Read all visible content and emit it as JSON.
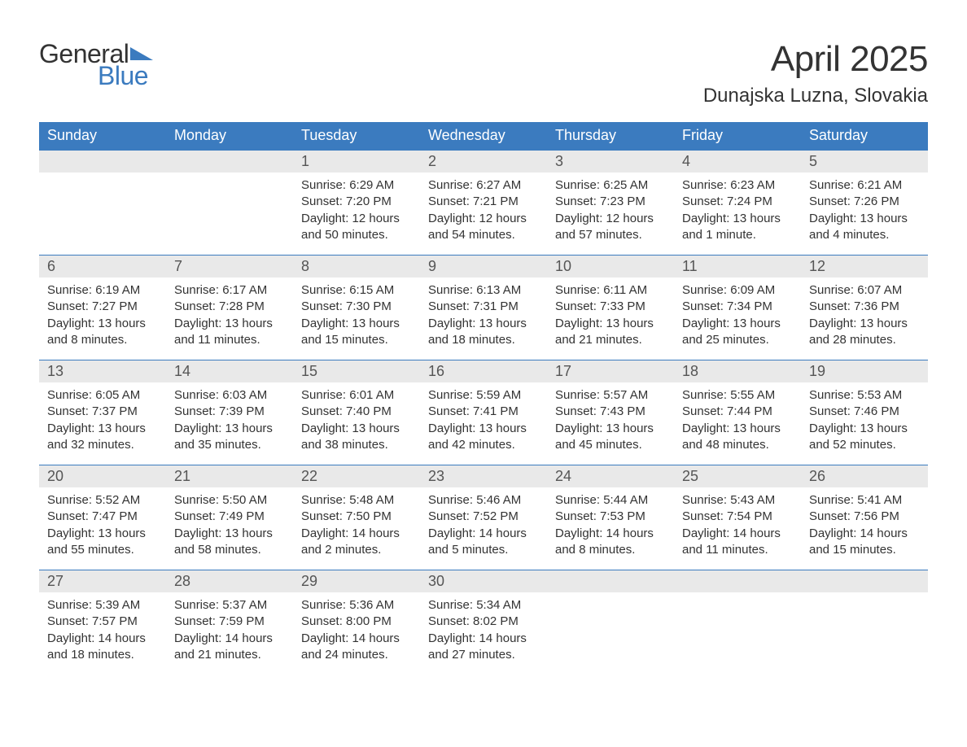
{
  "brand": {
    "word1": "General",
    "word2": "Blue",
    "color1": "#333333",
    "color2": "#3b7bbf"
  },
  "title": {
    "month": "April 2025",
    "location": "Dunajska Luzna, Slovakia"
  },
  "colors": {
    "header_bg": "#3b7bbf",
    "header_text": "#ffffff",
    "band_bg": "#e9e9e9",
    "text": "#333333",
    "rule": "#3b7bbf"
  },
  "day_names": [
    "Sunday",
    "Monday",
    "Tuesday",
    "Wednesday",
    "Thursday",
    "Friday",
    "Saturday"
  ],
  "weeks": [
    [
      null,
      null,
      {
        "n": "1",
        "sunrise": "Sunrise: 6:29 AM",
        "sunset": "Sunset: 7:20 PM",
        "day1": "Daylight: 12 hours",
        "day2": "and 50 minutes."
      },
      {
        "n": "2",
        "sunrise": "Sunrise: 6:27 AM",
        "sunset": "Sunset: 7:21 PM",
        "day1": "Daylight: 12 hours",
        "day2": "and 54 minutes."
      },
      {
        "n": "3",
        "sunrise": "Sunrise: 6:25 AM",
        "sunset": "Sunset: 7:23 PM",
        "day1": "Daylight: 12 hours",
        "day2": "and 57 minutes."
      },
      {
        "n": "4",
        "sunrise": "Sunrise: 6:23 AM",
        "sunset": "Sunset: 7:24 PM",
        "day1": "Daylight: 13 hours",
        "day2": "and 1 minute."
      },
      {
        "n": "5",
        "sunrise": "Sunrise: 6:21 AM",
        "sunset": "Sunset: 7:26 PM",
        "day1": "Daylight: 13 hours",
        "day2": "and 4 minutes."
      }
    ],
    [
      {
        "n": "6",
        "sunrise": "Sunrise: 6:19 AM",
        "sunset": "Sunset: 7:27 PM",
        "day1": "Daylight: 13 hours",
        "day2": "and 8 minutes."
      },
      {
        "n": "7",
        "sunrise": "Sunrise: 6:17 AM",
        "sunset": "Sunset: 7:28 PM",
        "day1": "Daylight: 13 hours",
        "day2": "and 11 minutes."
      },
      {
        "n": "8",
        "sunrise": "Sunrise: 6:15 AM",
        "sunset": "Sunset: 7:30 PM",
        "day1": "Daylight: 13 hours",
        "day2": "and 15 minutes."
      },
      {
        "n": "9",
        "sunrise": "Sunrise: 6:13 AM",
        "sunset": "Sunset: 7:31 PM",
        "day1": "Daylight: 13 hours",
        "day2": "and 18 minutes."
      },
      {
        "n": "10",
        "sunrise": "Sunrise: 6:11 AM",
        "sunset": "Sunset: 7:33 PM",
        "day1": "Daylight: 13 hours",
        "day2": "and 21 minutes."
      },
      {
        "n": "11",
        "sunrise": "Sunrise: 6:09 AM",
        "sunset": "Sunset: 7:34 PM",
        "day1": "Daylight: 13 hours",
        "day2": "and 25 minutes."
      },
      {
        "n": "12",
        "sunrise": "Sunrise: 6:07 AM",
        "sunset": "Sunset: 7:36 PM",
        "day1": "Daylight: 13 hours",
        "day2": "and 28 minutes."
      }
    ],
    [
      {
        "n": "13",
        "sunrise": "Sunrise: 6:05 AM",
        "sunset": "Sunset: 7:37 PM",
        "day1": "Daylight: 13 hours",
        "day2": "and 32 minutes."
      },
      {
        "n": "14",
        "sunrise": "Sunrise: 6:03 AM",
        "sunset": "Sunset: 7:39 PM",
        "day1": "Daylight: 13 hours",
        "day2": "and 35 minutes."
      },
      {
        "n": "15",
        "sunrise": "Sunrise: 6:01 AM",
        "sunset": "Sunset: 7:40 PM",
        "day1": "Daylight: 13 hours",
        "day2": "and 38 minutes."
      },
      {
        "n": "16",
        "sunrise": "Sunrise: 5:59 AM",
        "sunset": "Sunset: 7:41 PM",
        "day1": "Daylight: 13 hours",
        "day2": "and 42 minutes."
      },
      {
        "n": "17",
        "sunrise": "Sunrise: 5:57 AM",
        "sunset": "Sunset: 7:43 PM",
        "day1": "Daylight: 13 hours",
        "day2": "and 45 minutes."
      },
      {
        "n": "18",
        "sunrise": "Sunrise: 5:55 AM",
        "sunset": "Sunset: 7:44 PM",
        "day1": "Daylight: 13 hours",
        "day2": "and 48 minutes."
      },
      {
        "n": "19",
        "sunrise": "Sunrise: 5:53 AM",
        "sunset": "Sunset: 7:46 PM",
        "day1": "Daylight: 13 hours",
        "day2": "and 52 minutes."
      }
    ],
    [
      {
        "n": "20",
        "sunrise": "Sunrise: 5:52 AM",
        "sunset": "Sunset: 7:47 PM",
        "day1": "Daylight: 13 hours",
        "day2": "and 55 minutes."
      },
      {
        "n": "21",
        "sunrise": "Sunrise: 5:50 AM",
        "sunset": "Sunset: 7:49 PM",
        "day1": "Daylight: 13 hours",
        "day2": "and 58 minutes."
      },
      {
        "n": "22",
        "sunrise": "Sunrise: 5:48 AM",
        "sunset": "Sunset: 7:50 PM",
        "day1": "Daylight: 14 hours",
        "day2": "and 2 minutes."
      },
      {
        "n": "23",
        "sunrise": "Sunrise: 5:46 AM",
        "sunset": "Sunset: 7:52 PM",
        "day1": "Daylight: 14 hours",
        "day2": "and 5 minutes."
      },
      {
        "n": "24",
        "sunrise": "Sunrise: 5:44 AM",
        "sunset": "Sunset: 7:53 PM",
        "day1": "Daylight: 14 hours",
        "day2": "and 8 minutes."
      },
      {
        "n": "25",
        "sunrise": "Sunrise: 5:43 AM",
        "sunset": "Sunset: 7:54 PM",
        "day1": "Daylight: 14 hours",
        "day2": "and 11 minutes."
      },
      {
        "n": "26",
        "sunrise": "Sunrise: 5:41 AM",
        "sunset": "Sunset: 7:56 PM",
        "day1": "Daylight: 14 hours",
        "day2": "and 15 minutes."
      }
    ],
    [
      {
        "n": "27",
        "sunrise": "Sunrise: 5:39 AM",
        "sunset": "Sunset: 7:57 PM",
        "day1": "Daylight: 14 hours",
        "day2": "and 18 minutes."
      },
      {
        "n": "28",
        "sunrise": "Sunrise: 5:37 AM",
        "sunset": "Sunset: 7:59 PM",
        "day1": "Daylight: 14 hours",
        "day2": "and 21 minutes."
      },
      {
        "n": "29",
        "sunrise": "Sunrise: 5:36 AM",
        "sunset": "Sunset: 8:00 PM",
        "day1": "Daylight: 14 hours",
        "day2": "and 24 minutes."
      },
      {
        "n": "30",
        "sunrise": "Sunrise: 5:34 AM",
        "sunset": "Sunset: 8:02 PM",
        "day1": "Daylight: 14 hours",
        "day2": "and 27 minutes."
      },
      null,
      null,
      null
    ]
  ]
}
